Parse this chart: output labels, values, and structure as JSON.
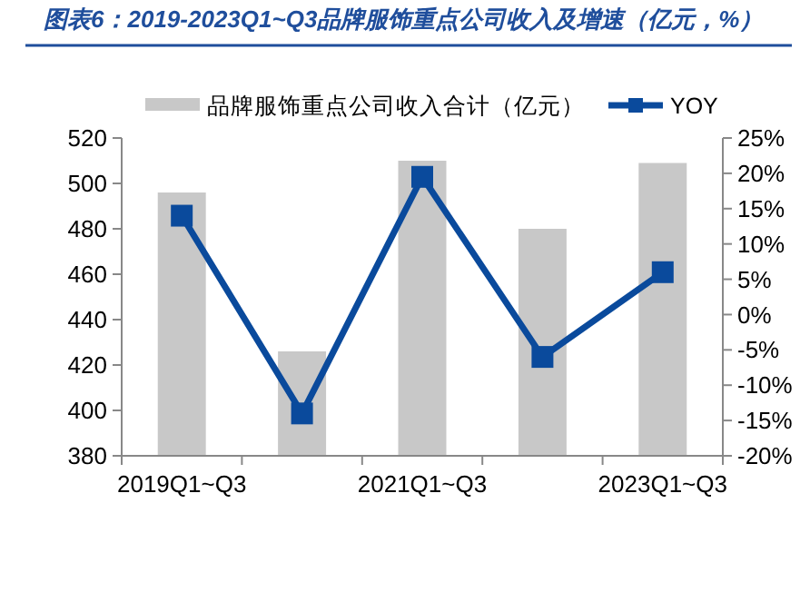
{
  "chart_data": {
    "type": "bar",
    "title": "图表6：2019-2023Q1~Q3品牌服饰重点公司收入及增速（亿元，%）",
    "categories": [
      "2019Q1~Q3",
      null,
      "2021Q1~Q3",
      null,
      "2023Q1~Q3"
    ],
    "series": [
      {
        "name": "品牌服饰重点公司收入合计（亿元）",
        "color": "#c8c8c8",
        "values": [
          496,
          426,
          510,
          480,
          509
        ]
      },
      {
        "name": "YOY",
        "type": "line",
        "axis": "y2",
        "color": "#0a4a9c",
        "marker": "square",
        "values": [
          14,
          -14,
          19.5,
          -6,
          6
        ]
      }
    ],
    "ylim": [
      380,
      520
    ],
    "yticks": [
      380,
      400,
      420,
      440,
      460,
      480,
      500,
      520
    ],
    "y2lim": [
      -20,
      25
    ],
    "y2ticks": [
      {
        "value": -20,
        "label": "-20%"
      },
      {
        "value": -15,
        "label": "-15%"
      },
      {
        "value": -10,
        "label": "-10%"
      },
      {
        "value": -5,
        "label": "-5%"
      },
      {
        "value": 0,
        "label": "0%"
      },
      {
        "value": 5,
        "label": "5%"
      },
      {
        "value": 10,
        "label": "10%"
      },
      {
        "value": 15,
        "label": "15%"
      },
      {
        "value": 20,
        "label": "20%"
      },
      {
        "value": 25,
        "label": "25%"
      }
    ],
    "grid": false,
    "legend": "top"
  }
}
